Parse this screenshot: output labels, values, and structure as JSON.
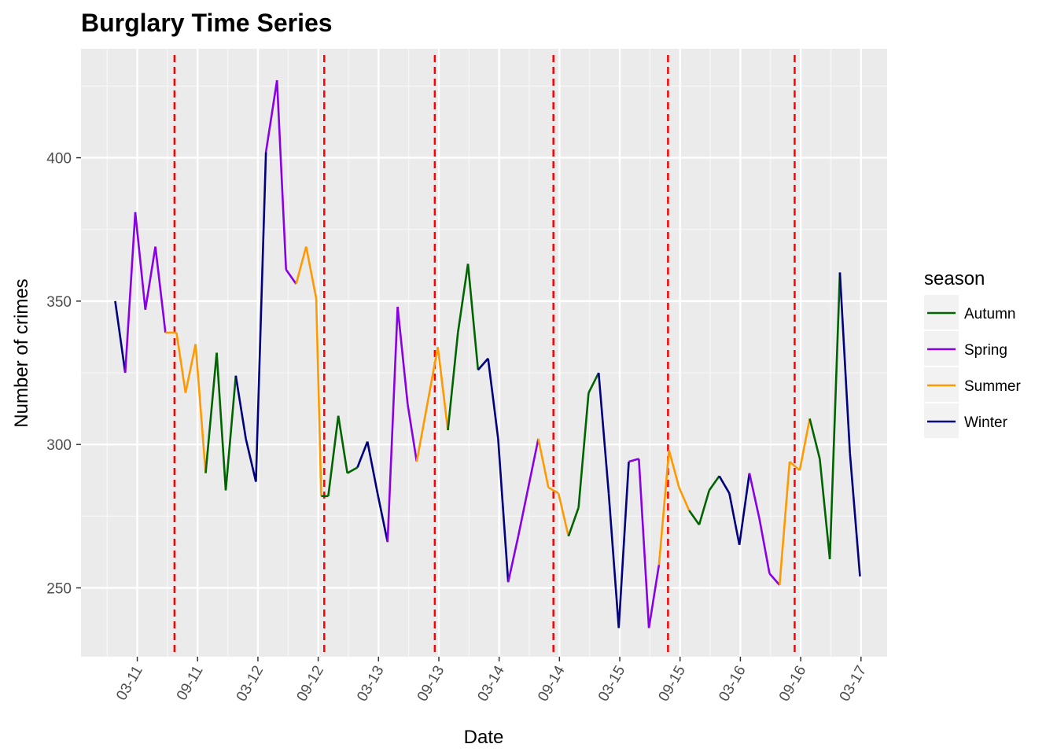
{
  "chart_data": {
    "type": "line",
    "title": "Burglary Time Series",
    "xlabel": "Date",
    "ylabel": "Number of crimes",
    "x_tick_labels": [
      "03-11",
      "09-11",
      "03-12",
      "09-12",
      "03-13",
      "09-13",
      "03-14",
      "09-14",
      "03-15",
      "09-15",
      "03-16",
      "09-16",
      "03-17"
    ],
    "x_tick_months": [
      2,
      8,
      14,
      20,
      26,
      32,
      38,
      44,
      50,
      56,
      62,
      68,
      74
    ],
    "xlim_months": [
      -3.6,
      76.6
    ],
    "y_ticks": [
      250,
      300,
      350,
      400
    ],
    "ylim": [
      226,
      438
    ],
    "grid": true,
    "legend": {
      "title": "season",
      "position": "right",
      "entries": [
        {
          "name": "Autumn",
          "color": "#006400"
        },
        {
          "name": "Spring",
          "color": "#8A00E6"
        },
        {
          "name": "Summer",
          "color": "#FF9900"
        },
        {
          "name": "Winter",
          "color": "#00007F"
        }
      ]
    },
    "season_colors": {
      "Autumn": "#006400",
      "Spring": "#8A00E6",
      "Summer": "#FF9900",
      "Winter": "#00007F"
    },
    "x_month_origin": "01-11",
    "points": [
      [
        -0.2,
        350,
        "Winter"
      ],
      [
        0.8,
        325,
        "Winter"
      ],
      [
        1.8,
        381,
        "Spring"
      ],
      [
        2.8,
        347,
        "Spring"
      ],
      [
        3.8,
        369,
        "Spring"
      ],
      [
        4.8,
        339,
        "Spring"
      ],
      [
        5.9,
        339,
        "Summer"
      ],
      [
        6.8,
        318,
        "Summer"
      ],
      [
        7.8,
        335,
        "Summer"
      ],
      [
        8.8,
        290,
        "Summer"
      ],
      [
        9.9,
        332,
        "Autumn"
      ],
      [
        10.8,
        284,
        "Autumn"
      ],
      [
        11.8,
        324,
        "Autumn"
      ],
      [
        12.8,
        302,
        "Winter"
      ],
      [
        13.8,
        287,
        "Winter"
      ],
      [
        14.8,
        402,
        "Winter"
      ],
      [
        15.9,
        427,
        "Spring"
      ],
      [
        16.8,
        361,
        "Spring"
      ],
      [
        17.8,
        356,
        "Spring"
      ],
      [
        18.8,
        369,
        "Summer"
      ],
      [
        19.8,
        351,
        "Summer"
      ],
      [
        20.3,
        282,
        "Summer"
      ],
      [
        21.0,
        282,
        "Autumn"
      ],
      [
        22.0,
        310,
        "Autumn"
      ],
      [
        22.9,
        290,
        "Autumn"
      ],
      [
        23.9,
        292,
        "Autumn"
      ],
      [
        24.9,
        301,
        "Winter"
      ],
      [
        25.9,
        283,
        "Winter"
      ],
      [
        26.9,
        266,
        "Winter"
      ],
      [
        27.9,
        348,
        "Spring"
      ],
      [
        28.9,
        314,
        "Spring"
      ],
      [
        29.8,
        294,
        "Spring"
      ],
      [
        31.9,
        334,
        "Summer"
      ],
      [
        32.9,
        305,
        "Summer"
      ],
      [
        33.9,
        339,
        "Autumn"
      ],
      [
        34.9,
        363,
        "Autumn"
      ],
      [
        35.9,
        326,
        "Autumn"
      ],
      [
        36.9,
        330,
        "Winter"
      ],
      [
        37.9,
        302,
        "Winter"
      ],
      [
        38.9,
        252,
        "Winter"
      ],
      [
        39.9,
        268,
        "Spring"
      ],
      [
        41.9,
        302,
        "Spring"
      ],
      [
        42.9,
        285,
        "Summer"
      ],
      [
        43.9,
        283,
        "Summer"
      ],
      [
        44.9,
        268,
        "Summer"
      ],
      [
        45.9,
        278,
        "Autumn"
      ],
      [
        46.9,
        318,
        "Autumn"
      ],
      [
        47.9,
        325,
        "Autumn"
      ],
      [
        48.9,
        283,
        "Winter"
      ],
      [
        49.9,
        236,
        "Winter"
      ],
      [
        50.9,
        294,
        "Winter"
      ],
      [
        51.9,
        295,
        "Spring"
      ],
      [
        52.9,
        236,
        "Spring"
      ],
      [
        53.9,
        258,
        "Spring"
      ],
      [
        54.9,
        298,
        "Summer"
      ],
      [
        55.9,
        285,
        "Summer"
      ],
      [
        56.9,
        277,
        "Summer"
      ],
      [
        57.9,
        272,
        "Autumn"
      ],
      [
        58.9,
        284,
        "Autumn"
      ],
      [
        59.9,
        289,
        "Autumn"
      ],
      [
        60.9,
        283,
        "Winter"
      ],
      [
        61.9,
        265,
        "Winter"
      ],
      [
        62.9,
        290,
        "Winter"
      ],
      [
        63.9,
        274,
        "Spring"
      ],
      [
        64.9,
        255,
        "Spring"
      ],
      [
        65.9,
        251,
        "Spring"
      ],
      [
        66.9,
        294,
        "Summer"
      ],
      [
        67.9,
        291,
        "Summer"
      ],
      [
        68.9,
        309,
        "Summer"
      ],
      [
        69.9,
        295,
        "Autumn"
      ],
      [
        70.9,
        260,
        "Autumn"
      ],
      [
        71.9,
        360,
        "Autumn"
      ],
      [
        72.9,
        297,
        "Winter"
      ],
      [
        73.9,
        254,
        "Winter"
      ]
    ],
    "season_boundaries": [
      {
        "month": 5.7,
        "color": "#FF0000",
        "style": "dashed"
      },
      {
        "month": 20.6,
        "color": "#FF0000",
        "style": "dashed"
      },
      {
        "month": 31.6,
        "color": "#FF0000",
        "style": "dashed"
      },
      {
        "month": 43.4,
        "color": "#FF0000",
        "style": "dashed"
      },
      {
        "month": 54.8,
        "color": "#FF0000",
        "style": "dashed"
      },
      {
        "month": 67.4,
        "color": "#FF0000",
        "style": "dashed"
      }
    ]
  }
}
